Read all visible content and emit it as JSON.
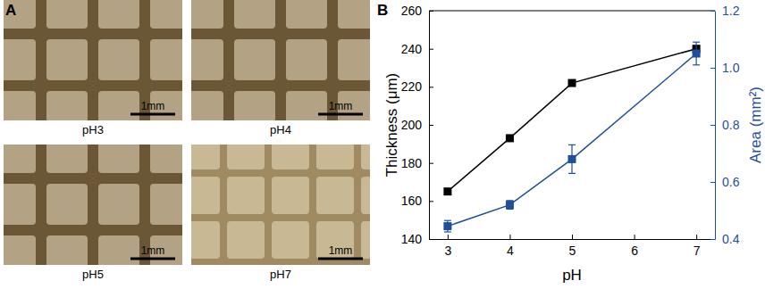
{
  "chart_data": {
    "type": "line",
    "x": [
      3,
      4,
      5,
      7
    ],
    "xlim": [
      2.7,
      7.3
    ],
    "xticks": [
      3,
      4,
      5,
      6,
      7
    ],
    "xlabel": "pH",
    "ylabel": "Thickness (μm)",
    "ylim": [
      140,
      260
    ],
    "yticks": [
      140,
      160,
      180,
      200,
      220,
      240,
      260
    ],
    "y2label": "Area (mm²)",
    "y2lim": [
      0.4,
      1.2
    ],
    "y2ticks": [
      0.4,
      0.6,
      0.8,
      {
        "value": 1.0,
        "label": "1.0"
      },
      1.2
    ],
    "grid": false,
    "series": [
      {
        "color": "#000000",
        "marker": "square",
        "line_style": "solid",
        "values": [
          165,
          193,
          222,
          240
        ]
      },
      {
        "color": "#1f4e9a",
        "marker": "square",
        "line_style": "solid",
        "axis": "y2",
        "values": [
          0.445,
          0.52,
          0.68,
          1.05
        ],
        "errors": [
          0.02,
          0.015,
          0.05,
          0.04
        ]
      }
    ]
  },
  "panel_labels": [
    "A",
    "B"
  ],
  "photos": [
    {
      "caption": "pH3",
      "scale_bar": "1mm"
    },
    {
      "caption": "pH4",
      "scale_bar": "1mm"
    },
    {
      "caption": "pH5",
      "scale_bar": "1mm"
    },
    {
      "caption": "pH7",
      "scale_bar": "1mm"
    }
  ]
}
